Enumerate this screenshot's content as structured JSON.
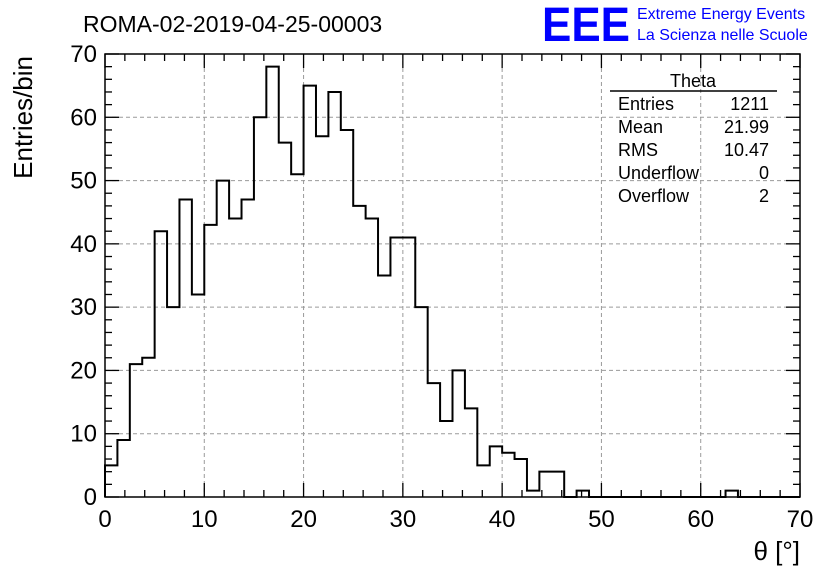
{
  "colors": {
    "axis": "#000000",
    "grid": "#9a9a9a",
    "histogram": "#000000",
    "logo": "#0000ff"
  },
  "logo": {
    "mark": "EEE",
    "line1": "Extreme Energy Events",
    "line2": "La Scienza nelle Scuole"
  },
  "stats_box": {
    "title": "Theta",
    "rows": [
      {
        "label": "Entries",
        "value": "1211"
      },
      {
        "label": "Mean",
        "value": "21.99"
      },
      {
        "label": "RMS",
        "value": "10.47"
      },
      {
        "label": "Underflow",
        "value": "0"
      },
      {
        "label": "Overflow",
        "value": "2"
      }
    ]
  },
  "chart_data": {
    "type": "bar",
    "title": "ROMA-02-2019-04-25-00003",
    "xlabel": "θ [°]",
    "ylabel": "Entries/bin",
    "xlim": [
      0,
      70
    ],
    "ylim": [
      0,
      70
    ],
    "bin_width": 1.25,
    "x_ticks": [
      "0",
      "10",
      "20",
      "30",
      "40",
      "50",
      "60",
      "70"
    ],
    "y_ticks": [
      "0",
      "10",
      "20",
      "30",
      "40",
      "50",
      "60",
      "70"
    ],
    "grid": true,
    "values": [
      5,
      9,
      21,
      22,
      42,
      30,
      47,
      32,
      43,
      50,
      44,
      47,
      60,
      68,
      56,
      51,
      65,
      57,
      64,
      58,
      46,
      44,
      35,
      41,
      41,
      30,
      18,
      12,
      20,
      14,
      5,
      8,
      7,
      6,
      1,
      4,
      4,
      0,
      1,
      0,
      0,
      0,
      0,
      0,
      0,
      0,
      0,
      0,
      0,
      0,
      1,
      0,
      0,
      0,
      0,
      0
    ]
  }
}
